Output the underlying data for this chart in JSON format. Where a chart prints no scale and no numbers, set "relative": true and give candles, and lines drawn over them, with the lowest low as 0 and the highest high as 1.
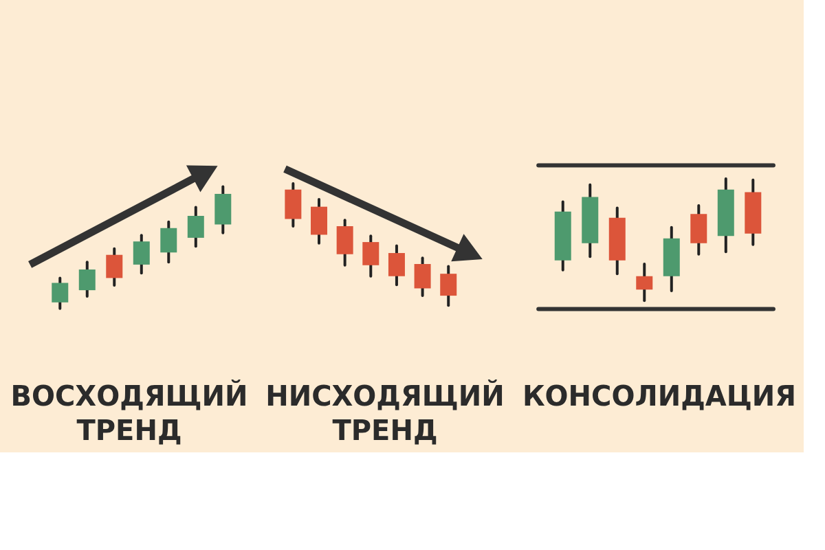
{
  "chart_data": [
    {
      "type": "candlestick",
      "title": "ВОСХОДЯЩИЙ ТРЕНД",
      "relative": true,
      "categories": [
        null,
        null,
        null,
        null,
        null,
        null,
        null
      ],
      "ohlc": [
        [
          0.05,
          0.25,
          0,
          0.21
        ],
        [
          0.15,
          0.38,
          0.1,
          0.32
        ],
        [
          0.44,
          0.49,
          0.19,
          0.25
        ],
        [
          0.36,
          0.6,
          0.29,
          0.55
        ],
        [
          0.46,
          0.71,
          0.38,
          0.66
        ],
        [
          0.58,
          0.83,
          0.51,
          0.76
        ],
        [
          0.69,
          1,
          0.62,
          0.94
        ]
      ],
      "colors": [
        "#4e9a6e",
        "#4e9a6e",
        "#dc553a",
        "#4e9a6e",
        "#4e9a6e",
        "#4e9a6e",
        "#4e9a6e"
      ]
    },
    {
      "type": "candlestick",
      "title": "НИСХОДЯЩИЙ ТРЕНД",
      "relative": true,
      "categories": [
        null,
        null,
        null,
        null,
        null,
        null,
        null
      ],
      "ohlc": [
        [
          0.95,
          1,
          0.65,
          0.71
        ],
        [
          0.81,
          0.87,
          0.51,
          0.58
        ],
        [
          0.65,
          0.7,
          0.33,
          0.42
        ],
        [
          0.52,
          0.57,
          0.24,
          0.33
        ],
        [
          0.43,
          0.49,
          0.17,
          0.24
        ],
        [
          0.34,
          0.39,
          0.08,
          0.14
        ],
        [
          0.26,
          0.32,
          0,
          0.08
        ]
      ],
      "colors": [
        "#dc553a",
        "#dc553a",
        "#dc553a",
        "#dc553a",
        "#dc553a",
        "#dc553a",
        "#dc553a"
      ]
    },
    {
      "type": "candlestick",
      "title": "КОНСОЛИДАЦИЯ",
      "relative": true,
      "categories": [
        null,
        null,
        null,
        null,
        null,
        null,
        null,
        null
      ],
      "ohlc": [
        [
          0.33,
          0.81,
          0.25,
          0.73
        ],
        [
          0.47,
          0.95,
          0.36,
          0.85
        ],
        [
          0.68,
          0.76,
          0.22,
          0.33
        ],
        [
          0.2,
          0.3,
          0,
          0.09
        ],
        [
          0.2,
          0.6,
          0.08,
          0.51
        ],
        [
          0.71,
          0.78,
          0.38,
          0.47
        ],
        [
          0.53,
          1,
          0.4,
          0.91
        ],
        [
          0.89,
          0.99,
          0.46,
          0.55
        ]
      ],
      "colors": [
        "#4e9a6e",
        "#4e9a6e",
        "#dc553a",
        "#dc553a",
        "#4e9a6e",
        "#dc553a",
        "#4e9a6e",
        "#dc553a"
      ],
      "ref_lines": [
        {
          "axis": "y",
          "value": 1.11,
          "color": "#333333"
        },
        {
          "axis": "y",
          "value": -0.07,
          "color": "#333333"
        }
      ]
    }
  ]
}
